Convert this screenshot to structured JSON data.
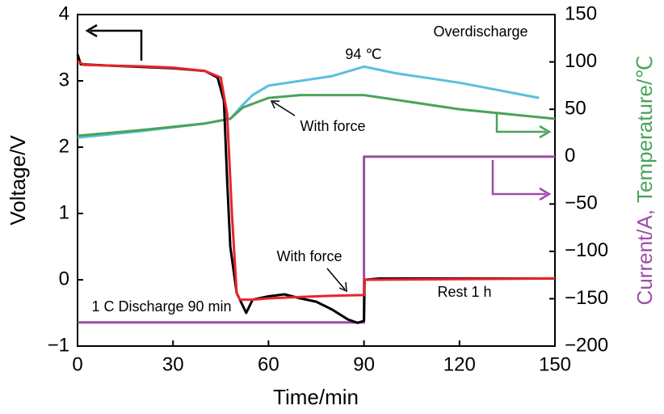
{
  "chart_data": {
    "type": "line",
    "xlabel": "Time/min",
    "ylabel": "Voltage/V",
    "y2label_current": "Current/A,",
    "y2label_temperature": "Temperature/℃",
    "xlim": [
      0,
      150
    ],
    "xticks": [
      0,
      30,
      60,
      90,
      120,
      150
    ],
    "ylim": [
      -1,
      4
    ],
    "yticks": [
      {
        "value": -1,
        "label": "−1"
      },
      0,
      1,
      2,
      3,
      4
    ],
    "y2lim": [
      -200,
      150
    ],
    "y2ticks": [
      {
        "value": -200,
        "label": "−200"
      },
      {
        "value": -150,
        "label": "−150"
      },
      {
        "value": -100,
        "label": "−100"
      },
      {
        "value": -50,
        "label": "−50"
      },
      0,
      50,
      100,
      150
    ],
    "annotations": [
      "Overdischarge",
      "94 ℃",
      "With force",
      "With force",
      "1 C Discharge 90 min",
      "Rest 1 h"
    ],
    "series": [
      {
        "color": "#000000",
        "x": [
          0,
          1,
          10,
          20,
          30,
          40,
          44,
          46,
          47,
          48,
          50,
          52,
          53,
          55,
          60,
          65,
          70,
          75,
          80,
          85,
          88,
          90,
          90.2,
          95,
          150
        ],
        "values": [
          3.4,
          3.25,
          3.23,
          3.21,
          3.19,
          3.15,
          3.05,
          2.7,
          1.5,
          0.5,
          -0.2,
          -0.4,
          -0.5,
          -0.3,
          -0.25,
          -0.22,
          -0.28,
          -0.33,
          -0.45,
          -0.6,
          -0.65,
          -0.62,
          0.0,
          0.02,
          0.02
        ]
      },
      {
        "color": "#e8252a",
        "x": [
          0,
          2,
          20,
          30,
          40,
          45,
          47,
          48.5,
          50,
          51,
          55,
          60,
          70,
          80,
          90,
          90.2,
          150
        ],
        "values": [
          3.3,
          3.24,
          3.22,
          3.2,
          3.15,
          3.05,
          2.5,
          1.0,
          -0.2,
          -0.3,
          -0.3,
          -0.28,
          -0.26,
          -0.24,
          -0.23,
          0.0,
          0.02
        ]
      },
      {
        "color": "#5bbfde",
        "axis": "y2",
        "x": [
          0,
          20,
          40,
          48,
          52,
          55,
          60,
          70,
          80,
          90,
          100,
          120,
          145
        ],
        "values": [
          20,
          27,
          35,
          40,
          55,
          65,
          75,
          80,
          85,
          95,
          88,
          78,
          62
        ]
      },
      {
        "color": "#4aa35a",
        "axis": "y2",
        "x": [
          0,
          20,
          40,
          48,
          52,
          60,
          70,
          80,
          90,
          100,
          120,
          150
        ],
        "values": [
          22,
          28,
          35,
          40,
          52,
          62,
          65,
          65,
          65,
          60,
          50,
          40
        ]
      },
      {
        "color": "#9b4fa6",
        "axis": "y2",
        "x": [
          0,
          90,
          90,
          150
        ],
        "values": [
          -175,
          -175,
          0,
          0
        ]
      }
    ]
  }
}
